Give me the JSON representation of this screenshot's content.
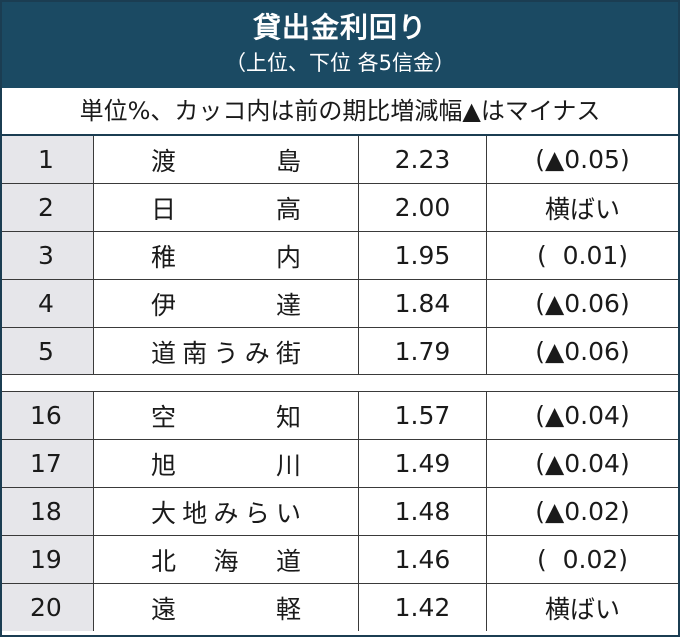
{
  "header": {
    "title": "貸出金利回り",
    "subtitle": "（上位、下位 各5信金）"
  },
  "unit_note": "単位%、カッコ内は前の期比増減幅▲はマイナス",
  "top5": [
    {
      "rank": "1",
      "name": "渡島",
      "rate": "2.23",
      "change": "(▲0.05)"
    },
    {
      "rank": "2",
      "name": "日高",
      "rate": "2.00",
      "change": "横ばい"
    },
    {
      "rank": "3",
      "name": "稚内",
      "rate": "1.95",
      "change": "(  0.01)"
    },
    {
      "rank": "4",
      "name": "伊達",
      "rate": "1.84",
      "change": "(▲0.06)"
    },
    {
      "rank": "5",
      "name": "道南うみ街",
      "rate": "1.79",
      "change": "(▲0.06)"
    }
  ],
  "bottom5": [
    {
      "rank": "16",
      "name": "空知",
      "rate": "1.57",
      "change": "(▲0.04)"
    },
    {
      "rank": "17",
      "name": "旭川",
      "rate": "1.49",
      "change": "(▲0.04)"
    },
    {
      "rank": "18",
      "name": "大地みらい",
      "rate": "1.48",
      "change": "(▲0.02)"
    },
    {
      "rank": "19",
      "name": "北海道",
      "rate": "1.46",
      "change": "(  0.02)"
    },
    {
      "rank": "20",
      "name": "遠軽",
      "rate": "1.42",
      "change": "横ばい"
    }
  ],
  "colors": {
    "header_bg": "#1b4a63",
    "rank_bg": "#e6e6ea"
  }
}
